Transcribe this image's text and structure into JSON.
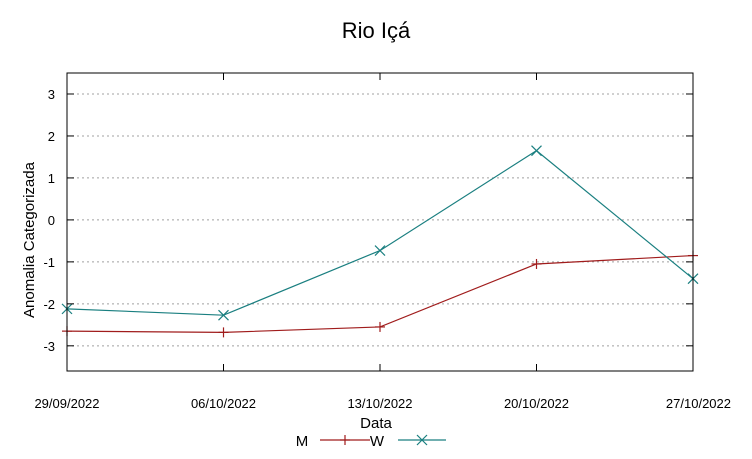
{
  "chart_data": {
    "type": "line",
    "title": "Rio Içá",
    "xlabel": "Data",
    "ylabel": "Anomalia Categorizada",
    "x": [
      "29/09/2022",
      "06/10/2022",
      "13/10/2022",
      "20/10/2022",
      "27/10/2022"
    ],
    "ylim": [
      -3.6,
      3.5
    ],
    "yticks": [
      "-3",
      "-2",
      "-1",
      "0",
      "1",
      "2",
      "3"
    ],
    "grid": true,
    "legend": "bottom-center",
    "series": [
      {
        "name": "M",
        "color": "#a01c1c",
        "marker": "plus",
        "values": [
          -2.65,
          -2.68,
          -2.55,
          -1.05,
          -0.85
        ]
      },
      {
        "name": "W",
        "color": "#1a7f80",
        "marker": "cross",
        "values": [
          -2.12,
          -2.27,
          -0.73,
          1.65,
          -1.4
        ]
      }
    ]
  }
}
